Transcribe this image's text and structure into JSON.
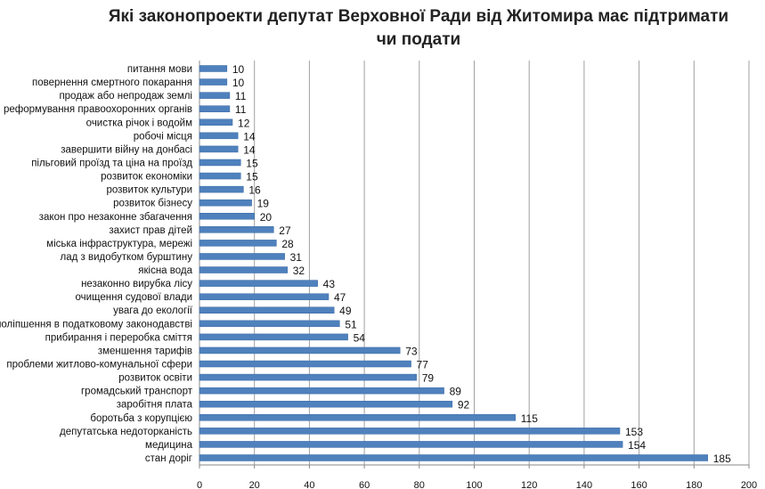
{
  "chart_data": {
    "type": "bar",
    "orientation": "horizontal",
    "title_lines": [
      "Які законопроекти депутат Верховної Ради від Житомира має підтримати",
      "чи подати"
    ],
    "categories": [
      "питання мови",
      "повернення смертного покарання",
      "продаж або непродаж землі",
      "реформування правоохоронних органів",
      "очистка річок і водойм",
      "робочі місця",
      "завершити війну на донбасі",
      "пільговий проїзд та ціна на проїзд",
      "розвиток економіки",
      "розвиток культури",
      "розвиток бізнесу",
      "закон про незаконне збагачення",
      "захист прав дітей",
      "міська інфраструктура, мережі",
      "лад з видобутком бурштину",
      "якісна вода",
      "незаконно вирубка лісу",
      "очищення судової влади",
      "увага до екології",
      "поліпшення в податковому законодавстві",
      "прибирання і переробка сміття",
      "зменшення тарифів",
      "проблеми житлово-комунальної сфери",
      "розвиток освіти",
      "громадський транспорт",
      "заробітня плата",
      "боротьба з корупцією",
      "депутатська недоторканість",
      "медицина",
      "стан доріг"
    ],
    "values": [
      10,
      10,
      11,
      11,
      12,
      14,
      14,
      15,
      15,
      16,
      19,
      20,
      27,
      28,
      31,
      32,
      43,
      47,
      49,
      51,
      54,
      73,
      77,
      79,
      89,
      92,
      115,
      153,
      154,
      185
    ],
    "xlim": [
      0,
      200
    ],
    "xticks": [
      0,
      20,
      40,
      60,
      80,
      100,
      120,
      140,
      160,
      180,
      200
    ],
    "grid": true,
    "bar_color": "#4f81bd",
    "data_labels": true
  }
}
